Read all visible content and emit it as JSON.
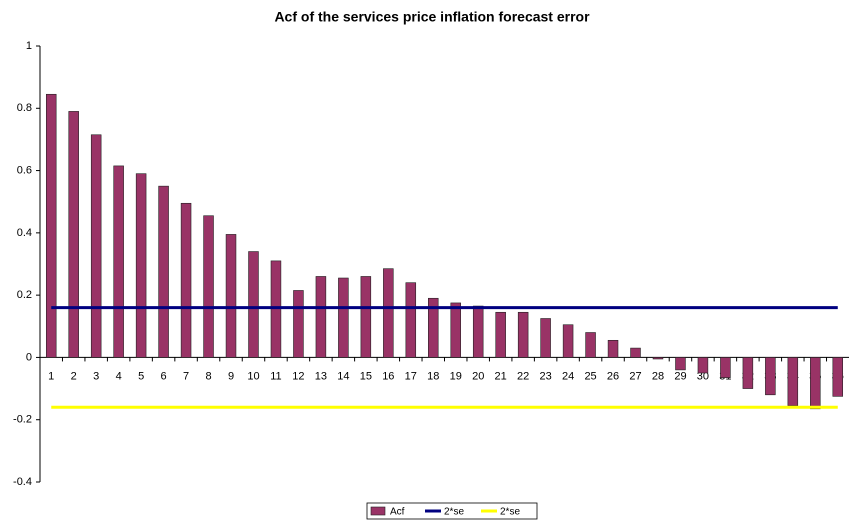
{
  "chart_data": {
    "type": "bar",
    "title": "Acf of the services price inflation forecast error",
    "categories": [
      "1",
      "2",
      "3",
      "4",
      "5",
      "6",
      "7",
      "8",
      "9",
      "10",
      "11",
      "12",
      "13",
      "14",
      "15",
      "16",
      "17",
      "18",
      "19",
      "20",
      "21",
      "22",
      "23",
      "24",
      "25",
      "26",
      "27",
      "28",
      "29",
      "30",
      "31",
      "32",
      "33",
      "34",
      "35",
      "36"
    ],
    "series": [
      {
        "name": "Acf",
        "type": "bar",
        "color": "#993366",
        "values": [
          0.845,
          0.79,
          0.715,
          0.615,
          0.59,
          0.55,
          0.495,
          0.455,
          0.395,
          0.34,
          0.31,
          0.215,
          0.26,
          0.255,
          0.26,
          0.285,
          0.24,
          0.19,
          0.175,
          0.165,
          0.145,
          0.145,
          0.125,
          0.105,
          0.08,
          0.055,
          0.03,
          -0.005,
          -0.04,
          -0.05,
          -0.065,
          -0.1,
          -0.12,
          -0.155,
          -0.165,
          -0.125
        ]
      },
      {
        "name": "2*se",
        "type": "line",
        "color": "#000080",
        "values": [
          0.16,
          0.16,
          0.16,
          0.16,
          0.16,
          0.16,
          0.16,
          0.16,
          0.16,
          0.16,
          0.16,
          0.16,
          0.16,
          0.16,
          0.16,
          0.16,
          0.16,
          0.16,
          0.16,
          0.16,
          0.16,
          0.16,
          0.16,
          0.16,
          0.16,
          0.16,
          0.16,
          0.16,
          0.16,
          0.16,
          0.16,
          0.16,
          0.16,
          0.16,
          0.16,
          0.16
        ]
      },
      {
        "name": "2*se",
        "type": "line",
        "color": "#FFFF00",
        "values": [
          -0.16,
          -0.16,
          -0.16,
          -0.16,
          -0.16,
          -0.16,
          -0.16,
          -0.16,
          -0.16,
          -0.16,
          -0.16,
          -0.16,
          -0.16,
          -0.16,
          -0.16,
          -0.16,
          -0.16,
          -0.16,
          -0.16,
          -0.16,
          -0.16,
          -0.16,
          -0.16,
          -0.16,
          -0.16,
          -0.16,
          -0.16,
          -0.16,
          -0.16,
          -0.16,
          -0.16,
          -0.16,
          -0.16,
          -0.16,
          -0.16,
          -0.16
        ]
      }
    ],
    "ylim": [
      -0.4,
      1
    ],
    "yticks": [
      -0.4,
      -0.2,
      0,
      0.2,
      0.4,
      0.6,
      0.8,
      1
    ],
    "grid": false,
    "legend": "bottom"
  }
}
